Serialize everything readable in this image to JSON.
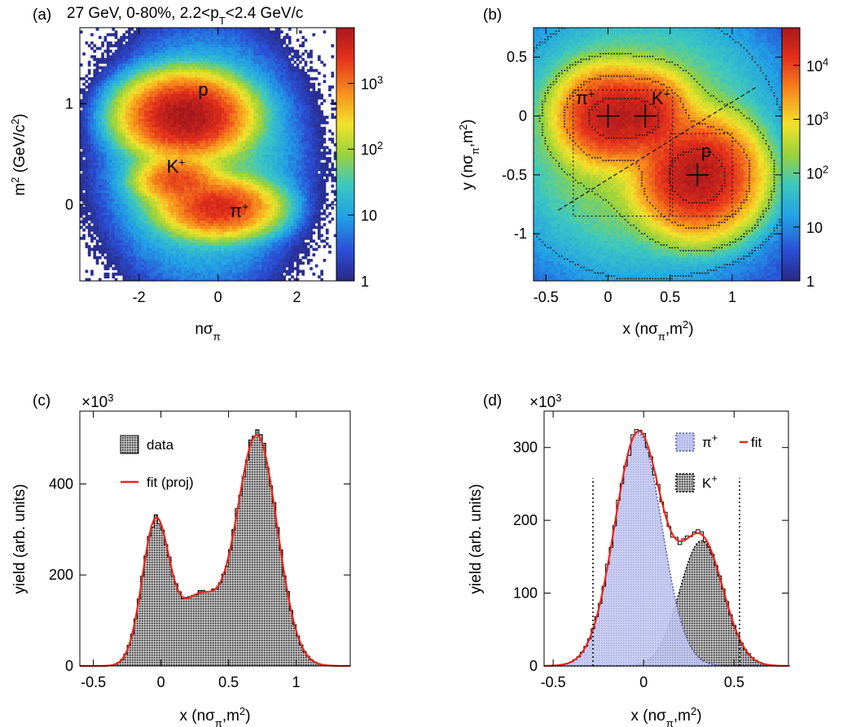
{
  "chart_data": [
    {
      "panel": "(a)",
      "type": "heatmap",
      "title": "27 GeV, 0-80%, 2.2<pT<2.4 GeV/c",
      "xlabel": "nσπ",
      "ylabel": "m2 (GeV/c2)",
      "xlim": [
        -3.5,
        3.0
      ],
      "ylim": [
        -0.75,
        1.75
      ],
      "x_ticks": [
        -2,
        0,
        2
      ],
      "y_ticks": [
        0,
        1
      ],
      "colorbar": {
        "scale": "log",
        "range": [
          1,
          7000
        ],
        "tick_values": [
          1,
          10,
          100,
          1000
        ],
        "tick_labels": [
          "1",
          "10",
          "10²",
          "10³"
        ]
      },
      "peaks": [
        {
          "label": "p",
          "x": -0.8,
          "y": 0.88,
          "peak_counts": 7000
        },
        {
          "label": "K+",
          "x": -1.1,
          "y": 0.25,
          "peak_counts": 2000
        },
        {
          "label": "π+",
          "x": 0.0,
          "y": -0.05,
          "peak_counts": 3000
        }
      ],
      "annotations": [
        {
          "text": "p",
          "x": -0.5,
          "y": 1.08
        },
        {
          "text": "K",
          "sup": "+",
          "x": -1.3,
          "y": 0.32
        },
        {
          "text": "π",
          "sup": "+",
          "x": 0.3,
          "y": -0.12
        }
      ]
    },
    {
      "panel": "(b)",
      "type": "heatmap",
      "title": "",
      "xlabel": "x (nσπ,m2)",
      "ylabel": "y (nσπ,m2)",
      "xlim": [
        -0.6,
        1.4
      ],
      "ylim": [
        -1.4,
        0.75
      ],
      "x_ticks": [
        -0.5,
        0,
        0.5,
        1
      ],
      "y_ticks": [
        -1,
        -0.5,
        0,
        0.5
      ],
      "colorbar": {
        "scale": "log",
        "range": [
          1,
          50000
        ],
        "tick_values": [
          1,
          10,
          100,
          1000,
          10000
        ],
        "tick_labels": [
          "1",
          "10",
          "10²",
          "10³",
          "10⁴"
        ]
      },
      "peaks": [
        {
          "label": "π+",
          "x": 0.0,
          "y": 0.0,
          "peak_counts": 30000
        },
        {
          "label": "K+",
          "x": 0.3,
          "y": 0.0,
          "peak_counts": 25000
        },
        {
          "label": "p",
          "x": 0.72,
          "y": -0.5,
          "peak_counts": 40000
        }
      ],
      "annotations": [
        {
          "text": "π",
          "sup": "+",
          "x": -0.26,
          "y": 0.1
        },
        {
          "text": "K",
          "sup": "+",
          "x": 0.35,
          "y": 0.1
        },
        {
          "text": "p",
          "x": 0.75,
          "y": -0.35
        }
      ]
    },
    {
      "panel": "(c)",
      "type": "bar",
      "xlabel": "x (nσπ,m2)",
      "ylabel": "yield (arb. units)",
      "y_multiplier": "×10³",
      "xlim": [
        -0.6,
        1.4
      ],
      "ylim": [
        0,
        560
      ],
      "x_ticks": [
        -0.5,
        0,
        0.5,
        1
      ],
      "y_ticks": [
        0,
        200,
        400
      ],
      "bin_width": 0.025,
      "components": [
        {
          "amp": 310,
          "mu": -0.04,
          "sigma": 0.1
        },
        {
          "amp": 150,
          "mu": 0.28,
          "sigma": 0.15
        },
        {
          "amp": 505,
          "mu": 0.71,
          "sigma": 0.15
        }
      ],
      "series": [
        {
          "name": "data",
          "style": "hatched-histogram"
        },
        {
          "name": "fit (proj)",
          "style": "red-line"
        }
      ]
    },
    {
      "panel": "(d)",
      "type": "bar",
      "xlabel": "x (nσπ,m2)",
      "ylabel": "yield (arb. units)",
      "y_multiplier": "×10³",
      "xlim": [
        -0.55,
        0.8
      ],
      "ylim": [
        0,
        350
      ],
      "x_ticks": [
        -0.5,
        0,
        0.5
      ],
      "y_ticks": [
        0,
        100,
        200,
        300
      ],
      "bin_width": 0.02,
      "cut_lines_x": [
        -0.28,
        0.53
      ],
      "cut_lines_top": 258,
      "components": [
        {
          "name": "π+",
          "amp": 320,
          "mu": -0.03,
          "sigma": 0.13
        },
        {
          "name": "K+",
          "amp": 172,
          "mu": 0.32,
          "sigma": 0.12
        }
      ],
      "series": [
        {
          "name": "π",
          "sup": "+",
          "style": "blue-hatched"
        },
        {
          "name": "K",
          "sup": "+",
          "style": "black-hatched"
        },
        {
          "name": "fit",
          "style": "red-line"
        }
      ]
    }
  ],
  "colors": {
    "fit_line": "#e8261c",
    "pion_fill": "#c2c6f0",
    "pion_edge": "#5058b8"
  }
}
